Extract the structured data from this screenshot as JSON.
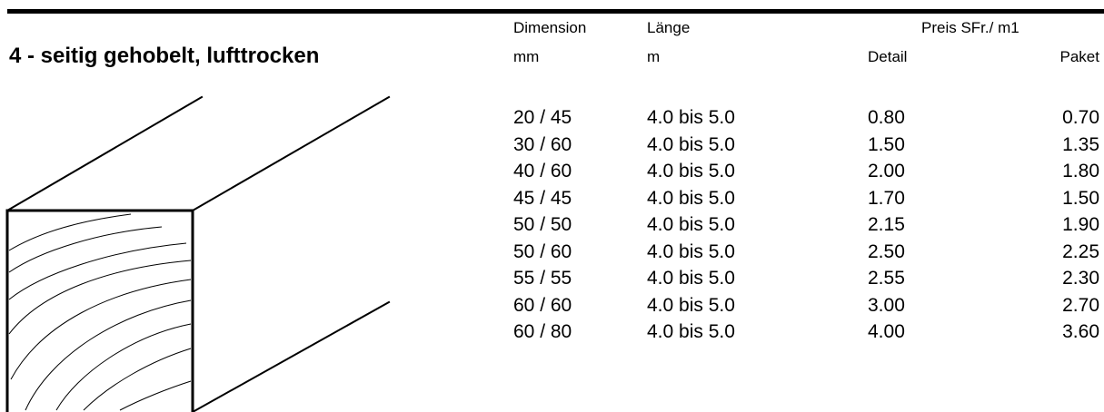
{
  "title": "4 - seitig gehobelt, lufttrocken",
  "headers": {
    "dimension": "Dimension",
    "dimension_unit": "mm",
    "length": "Länge",
    "length_unit": "m",
    "price": "Preis SFr./ m1",
    "detail": "Detail",
    "paket": "Paket"
  },
  "rows": [
    {
      "dimension": "20 / 45",
      "length": "4.0 bis 5.0",
      "detail": "0.80",
      "paket": "0.70"
    },
    {
      "dimension": "30 / 60",
      "length": "4.0 bis 5.0",
      "detail": "1.50",
      "paket": "1.35"
    },
    {
      "dimension": "40 / 60",
      "length": "4.0 bis 5.0",
      "detail": "2.00",
      "paket": "1.80"
    },
    {
      "dimension": "45 / 45",
      "length": "4.0 bis 5.0",
      "detail": "1.70",
      "paket": "1.50"
    },
    {
      "dimension": "50 / 50",
      "length": "4.0 bis 5.0",
      "detail": "2.15",
      "paket": "1.90"
    },
    {
      "dimension": "50 / 60",
      "length": "4.0 bis 5.0",
      "detail": "2.50",
      "paket": "2.25"
    },
    {
      "dimension": "55 / 55",
      "length": "4.0 bis 5.0",
      "detail": "2.55",
      "paket": "2.30"
    },
    {
      "dimension": "60 / 60",
      "length": "4.0 bis 5.0",
      "detail": "3.00",
      "paket": "2.70"
    },
    {
      "dimension": "60 / 80",
      "length": "4.0 bis 5.0",
      "detail": "4.00",
      "paket": "3.60"
    }
  ]
}
